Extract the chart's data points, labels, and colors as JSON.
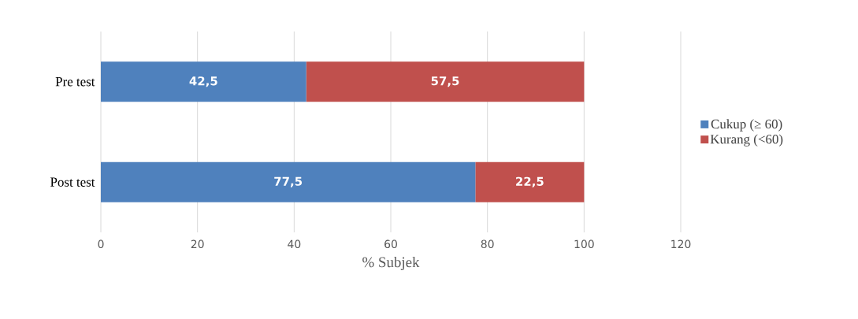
{
  "chart_data": {
    "type": "bar",
    "orientation": "horizontal",
    "stacked": true,
    "xlabel": "% Subjek",
    "categories": [
      "Pre test",
      "Post test"
    ],
    "series": [
      {
        "name": "Cukup (≥ 60)",
        "color": "#4f81bd",
        "values": [
          42.5,
          77.5
        ],
        "value_labels": [
          "42,5",
          "77,5"
        ]
      },
      {
        "name": "Kurang (<60)",
        "color": "#c0504d",
        "values": [
          57.5,
          22.5
        ],
        "value_labels": [
          "57,5",
          "22,5"
        ]
      }
    ],
    "xlim": [
      0,
      120
    ],
    "xticks": [
      0,
      20,
      40,
      60,
      80,
      100,
      120
    ],
    "grid": "x",
    "legend": "right"
  }
}
